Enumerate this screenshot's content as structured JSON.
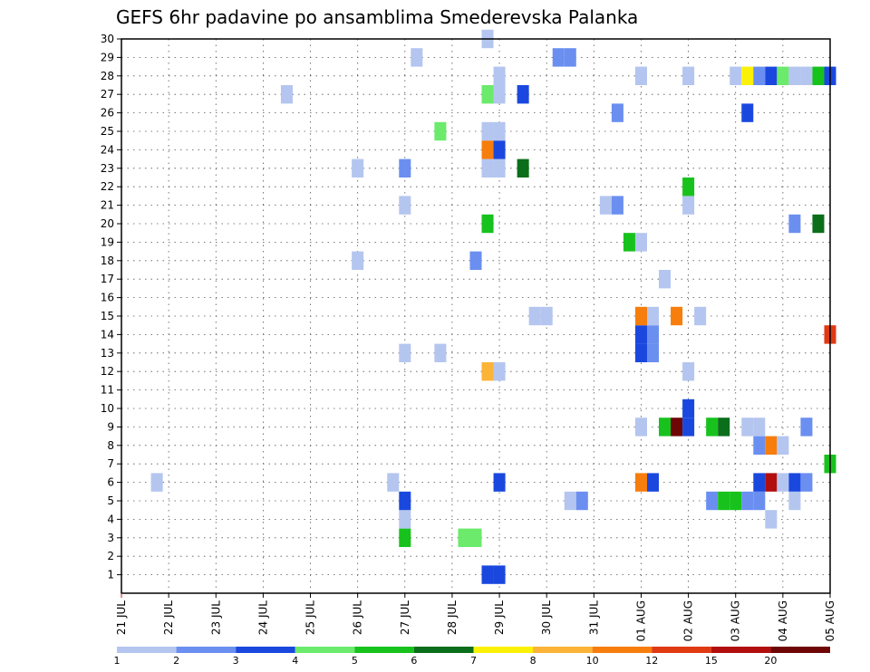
{
  "chart_data": {
    "type": "heatmap",
    "title": "GEFS 6hr padavine po ansamblima Smederevska Palanka",
    "xlabel": "",
    "ylabel": "",
    "x_tick_labels": [
      "21 JUL",
      "22 JUL",
      "23 JUL",
      "24 JUL",
      "25 JUL",
      "26 JUL",
      "27 JUL",
      "28 JUL",
      "29 JUL",
      "30 JUL",
      "31 JUL",
      "01 AUG",
      "02 AUG",
      "03 AUG",
      "04 AUG",
      "05 AUG"
    ],
    "x_range_days": [
      0,
      15
    ],
    "y_tick_labels": [
      "1",
      "2",
      "3",
      "4",
      "5",
      "6",
      "7",
      "8",
      "9",
      "10",
      "11",
      "12",
      "13",
      "14",
      "15",
      "16",
      "17",
      "18",
      "19",
      "20",
      "21",
      "22",
      "23",
      "24",
      "25",
      "26",
      "27",
      "28",
      "29",
      "30"
    ],
    "y_range": [
      0,
      30
    ],
    "grid": true,
    "legend": {
      "placement": "bottom",
      "levels": [
        "1",
        "2",
        "3",
        "4",
        "5",
        "6",
        "7",
        "8",
        "10",
        "12",
        "15",
        "20"
      ],
      "colors": [
        "#b4c6ef",
        "#6b8ff0",
        "#1a48df",
        "#6bea6b",
        "#17c21c",
        "#0b6e1a",
        "#fbf107",
        "#fbb338",
        "#f77d0c",
        "#df3a12",
        "#b20e0e",
        "#6f0606"
      ]
    },
    "cells": [
      {
        "member": 1,
        "day": 7.75,
        "cat": 3
      },
      {
        "member": 1,
        "day": 8.0,
        "cat": 3
      },
      {
        "member": 3,
        "day": 6.0,
        "cat": 5
      },
      {
        "member": 3,
        "day": 7.25,
        "cat": 4
      },
      {
        "member": 3,
        "day": 7.5,
        "cat": 4
      },
      {
        "member": 4,
        "day": 6.0,
        "cat": 1
      },
      {
        "member": 4,
        "day": 13.75,
        "cat": 1
      },
      {
        "member": 5,
        "day": 6.0,
        "cat": 3
      },
      {
        "member": 5,
        "day": 9.5,
        "cat": 1
      },
      {
        "member": 5,
        "day": 9.75,
        "cat": 2
      },
      {
        "member": 5,
        "day": 12.5,
        "cat": 2
      },
      {
        "member": 5,
        "day": 12.75,
        "cat": 5
      },
      {
        "member": 5,
        "day": 13.0,
        "cat": 5
      },
      {
        "member": 5,
        "day": 13.25,
        "cat": 2
      },
      {
        "member": 5,
        "day": 13.5,
        "cat": 2
      },
      {
        "member": 5,
        "day": 14.25,
        "cat": 1
      },
      {
        "member": 6,
        "day": 0.75,
        "cat": 1
      },
      {
        "member": 6,
        "day": 5.75,
        "cat": 1
      },
      {
        "member": 6,
        "day": 8.0,
        "cat": 3
      },
      {
        "member": 6,
        "day": 11.0,
        "cat": 9
      },
      {
        "member": 6,
        "day": 11.25,
        "cat": 3
      },
      {
        "member": 6,
        "day": 13.5,
        "cat": 3
      },
      {
        "member": 6,
        "day": 13.75,
        "cat": 11
      },
      {
        "member": 6,
        "day": 14.0,
        "cat": 1
      },
      {
        "member": 6,
        "day": 14.25,
        "cat": 3
      },
      {
        "member": 6,
        "day": 14.5,
        "cat": 2
      },
      {
        "member": 7,
        "day": 15.0,
        "cat": 5
      },
      {
        "member": 8,
        "day": 13.5,
        "cat": 2
      },
      {
        "member": 8,
        "day": 13.75,
        "cat": 9
      },
      {
        "member": 8,
        "day": 14.0,
        "cat": 1
      },
      {
        "member": 9,
        "day": 11.0,
        "cat": 1
      },
      {
        "member": 9,
        "day": 11.5,
        "cat": 5
      },
      {
        "member": 9,
        "day": 11.75,
        "cat": 12
      },
      {
        "member": 9,
        "day": 12.0,
        "cat": 3
      },
      {
        "member": 9,
        "day": 12.5,
        "cat": 5
      },
      {
        "member": 9,
        "day": 12.75,
        "cat": 6
      },
      {
        "member": 9,
        "day": 13.25,
        "cat": 1
      },
      {
        "member": 9,
        "day": 13.5,
        "cat": 1
      },
      {
        "member": 9,
        "day": 14.5,
        "cat": 2
      },
      {
        "member": 10,
        "day": 12.0,
        "cat": 3
      },
      {
        "member": 12,
        "day": 7.75,
        "cat": 8
      },
      {
        "member": 12,
        "day": 8.0,
        "cat": 1
      },
      {
        "member": 12,
        "day": 12.0,
        "cat": 1
      },
      {
        "member": 13,
        "day": 6.0,
        "cat": 1
      },
      {
        "member": 13,
        "day": 6.75,
        "cat": 1
      },
      {
        "member": 13,
        "day": 11.0,
        "cat": 3
      },
      {
        "member": 13,
        "day": 11.25,
        "cat": 2
      },
      {
        "member": 14,
        "day": 11.0,
        "cat": 3
      },
      {
        "member": 14,
        "day": 11.25,
        "cat": 2
      },
      {
        "member": 14,
        "day": 15.0,
        "cat": 10
      },
      {
        "member": 15,
        "day": 8.75,
        "cat": 1
      },
      {
        "member": 15,
        "day": 9.0,
        "cat": 1
      },
      {
        "member": 15,
        "day": 11.0,
        "cat": 9
      },
      {
        "member": 15,
        "day": 11.25,
        "cat": 1
      },
      {
        "member": 15,
        "day": 11.75,
        "cat": 9
      },
      {
        "member": 15,
        "day": 12.25,
        "cat": 1
      },
      {
        "member": 17,
        "day": 11.5,
        "cat": 1
      },
      {
        "member": 18,
        "day": 5.0,
        "cat": 1
      },
      {
        "member": 18,
        "day": 7.5,
        "cat": 2
      },
      {
        "member": 19,
        "day": 10.75,
        "cat": 5
      },
      {
        "member": 19,
        "day": 11.0,
        "cat": 1
      },
      {
        "member": 20,
        "day": 7.75,
        "cat": 5
      },
      {
        "member": 20,
        "day": 14.25,
        "cat": 2
      },
      {
        "member": 20,
        "day": 14.75,
        "cat": 6
      },
      {
        "member": 21,
        "day": 6.0,
        "cat": 1
      },
      {
        "member": 21,
        "day": 10.25,
        "cat": 1
      },
      {
        "member": 21,
        "day": 10.5,
        "cat": 2
      },
      {
        "member": 21,
        "day": 12.0,
        "cat": 1
      },
      {
        "member": 22,
        "day": 12.0,
        "cat": 5
      },
      {
        "member": 23,
        "day": 5.0,
        "cat": 1
      },
      {
        "member": 23,
        "day": 6.0,
        "cat": 2
      },
      {
        "member": 23,
        "day": 7.75,
        "cat": 1
      },
      {
        "member": 23,
        "day": 8.0,
        "cat": 1
      },
      {
        "member": 23,
        "day": 8.5,
        "cat": 6
      },
      {
        "member": 24,
        "day": 7.75,
        "cat": 9
      },
      {
        "member": 24,
        "day": 8.0,
        "cat": 3
      },
      {
        "member": 25,
        "day": 6.75,
        "cat": 4
      },
      {
        "member": 25,
        "day": 7.75,
        "cat": 1
      },
      {
        "member": 25,
        "day": 8.0,
        "cat": 1
      },
      {
        "member": 26,
        "day": 10.5,
        "cat": 2
      },
      {
        "member": 26,
        "day": 13.25,
        "cat": 3
      },
      {
        "member": 27,
        "day": 3.5,
        "cat": 1
      },
      {
        "member": 27,
        "day": 7.75,
        "cat": 4
      },
      {
        "member": 27,
        "day": 8.0,
        "cat": 1
      },
      {
        "member": 27,
        "day": 8.5,
        "cat": 3
      },
      {
        "member": 28,
        "day": 8.0,
        "cat": 1
      },
      {
        "member": 28,
        "day": 11.0,
        "cat": 1
      },
      {
        "member": 28,
        "day": 12.0,
        "cat": 1
      },
      {
        "member": 28,
        "day": 13.0,
        "cat": 1
      },
      {
        "member": 28,
        "day": 13.25,
        "cat": 7
      },
      {
        "member": 28,
        "day": 13.5,
        "cat": 2
      },
      {
        "member": 28,
        "day": 13.75,
        "cat": 3
      },
      {
        "member": 28,
        "day": 14.0,
        "cat": 4
      },
      {
        "member": 28,
        "day": 14.25,
        "cat": 1
      },
      {
        "member": 28,
        "day": 14.5,
        "cat": 1
      },
      {
        "member": 28,
        "day": 14.75,
        "cat": 5
      },
      {
        "member": 28,
        "day": 15.0,
        "cat": 3
      },
      {
        "member": 29,
        "day": 6.25,
        "cat": 1
      },
      {
        "member": 29,
        "day": 9.25,
        "cat": 2
      },
      {
        "member": 29,
        "day": 9.5,
        "cat": 2
      },
      {
        "member": 30,
        "day": 7.75,
        "cat": 1
      }
    ]
  }
}
